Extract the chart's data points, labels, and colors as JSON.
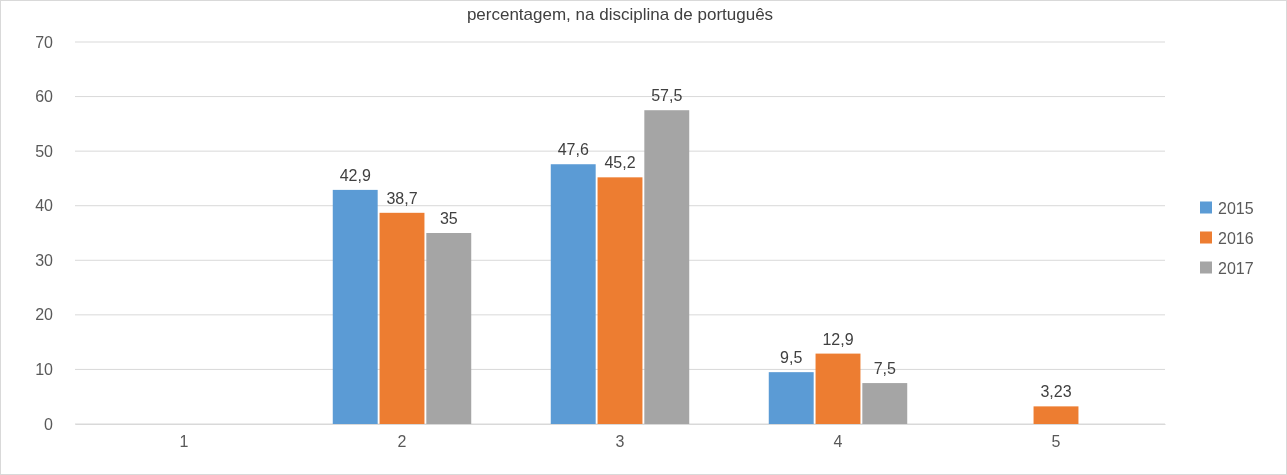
{
  "chart_data": {
    "type": "bar",
    "title": "percentagem, na disciplina de português",
    "categories": [
      "1",
      "2",
      "3",
      "4",
      "5"
    ],
    "series": [
      {
        "name": "2015",
        "color": "#5b9bd5",
        "values": [
          null,
          42.9,
          47.6,
          9.5,
          null
        ],
        "value_labels": [
          null,
          "42,9",
          "47,6",
          "9,5",
          null
        ]
      },
      {
        "name": "2016",
        "color": "#ed7d31",
        "values": [
          null,
          38.7,
          45.2,
          12.9,
          3.23
        ],
        "value_labels": [
          null,
          "38,7",
          "45,2",
          "12,9",
          "3,23"
        ]
      },
      {
        "name": "2017",
        "color": "#a5a5a5",
        "values": [
          null,
          35,
          57.5,
          7.5,
          null
        ],
        "value_labels": [
          null,
          "35",
          "57,5",
          "7,5",
          null
        ]
      }
    ],
    "ylim": [
      0,
      70
    ],
    "yticks": [
      0,
      10,
      20,
      30,
      40,
      50,
      60,
      70
    ],
    "grid": "y",
    "legend": "right"
  }
}
